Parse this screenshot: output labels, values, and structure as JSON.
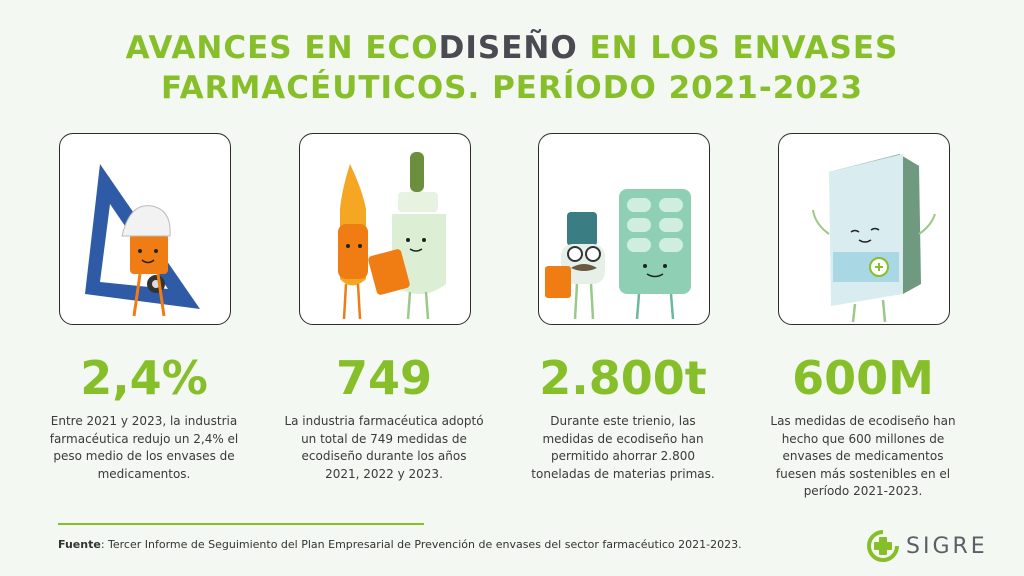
{
  "title": {
    "line1_a": "AVANCES EN ECO",
    "line1_b": "DISEÑO",
    "line1_c": " EN LOS ENVASES",
    "line2": "FARMACÉUTICOS. PERÍODO 2021-2023"
  },
  "cards": [
    {
      "value": "2,4%",
      "text": "Entre 2021 y 2023, la industria farmacéutica redujo un 2,4% el peso medio de los envases de medicamentos.",
      "icon": "set-square-character-icon"
    },
    {
      "value": "749",
      "text": "La industria farmacéutica adoptó un total de 749 medidas de ecodiseño durante los años 2021, 2022 y 2023.",
      "icon": "ampoule-and-bottle-characters-icon"
    },
    {
      "value": "2.800t",
      "text": "Durante este trienio, las medidas de ecodiseño han permitido ahorrar 2.800 toneladas de materias primas.",
      "icon": "dropper-and-blister-characters-icon"
    },
    {
      "value": "600M",
      "text": "Las medidas de ecodiseño han hecho que 600 millones de envases de medicamentos fuesen más sostenibles en el período 2021-2023.",
      "icon": "medicine-box-character-icon"
    }
  ],
  "footer": {
    "source_label": "Fuente",
    "source_text": ": Tercer Informe de Seguimiento del Plan Empresarial de Prevención de envases del sector farmacéutico 2021-2023."
  },
  "logo": {
    "text": "SIGRE"
  },
  "colors": {
    "accent": "#86bf2a",
    "dark": "#4a4a52",
    "background": "#f4f8f2"
  }
}
